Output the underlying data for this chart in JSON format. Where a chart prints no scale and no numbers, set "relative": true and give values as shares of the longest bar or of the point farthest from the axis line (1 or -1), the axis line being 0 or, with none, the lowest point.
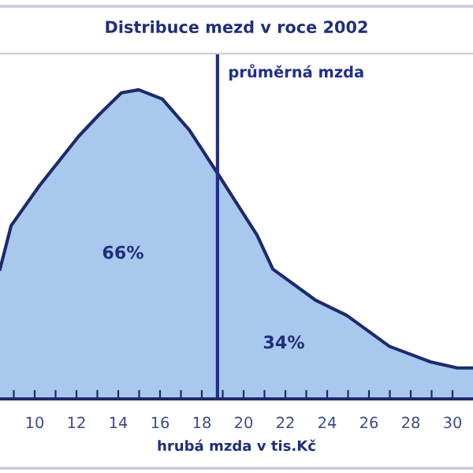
{
  "chart_data": {
    "type": "area",
    "relative": true,
    "title": "Distribuce mezd v roce 2002",
    "xlabel": "hrubá mzda v tis.Kč",
    "x": [
      8.34,
      8.87,
      10.23,
      12.11,
      13.09,
      14.15,
      14.98,
      16.11,
      17.4,
      18.75,
      20.64,
      21.4,
      23.43,
      24.94,
      26.98,
      28.94,
      30.23,
      30.98
    ],
    "series": [
      {
        "color": "#a9c8ee",
        "values": [
          0.42,
          0.56,
          0.69,
          0.85,
          0.92,
          0.99,
          1.0,
          0.97,
          0.87,
          0.73,
          0.53,
          0.42,
          0.32,
          0.27,
          0.17,
          0.12,
          0.1,
          0.1
        ]
      }
    ],
    "xlim": [
      8.34,
      30.98
    ],
    "xticks": [
      {
        "value": 9,
        "label": null
      },
      10,
      {
        "value": 11,
        "label": null
      },
      12,
      {
        "value": 13,
        "label": null
      },
      14,
      {
        "value": 15,
        "label": null
      },
      16,
      {
        "value": 17,
        "label": null
      },
      18,
      {
        "value": 19,
        "label": null
      },
      20,
      {
        "value": 21,
        "label": null
      },
      22,
      {
        "value": 23,
        "label": null
      },
      24,
      {
        "value": 25,
        "label": null
      },
      26,
      {
        "value": 27,
        "label": null
      },
      28,
      {
        "value": 29,
        "label": null
      },
      30
    ],
    "ref_lines": [
      {
        "axis": "x",
        "value": 18.75,
        "label": "průměrná mzda",
        "color": "#1f2f8a"
      }
    ],
    "annotations": [
      "66%",
      "34%"
    ],
    "grid": false,
    "legend": false
  }
}
